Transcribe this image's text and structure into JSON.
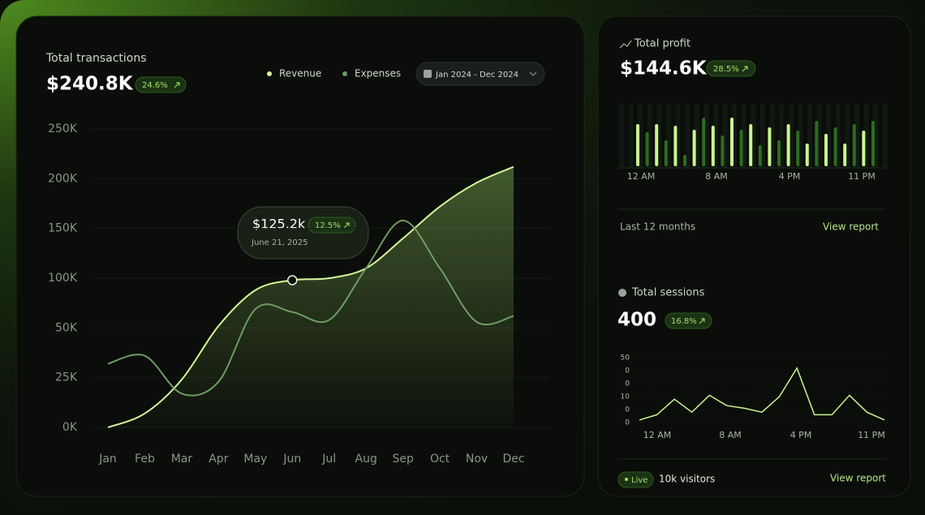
{
  "transactions": {
    "title": "Total transactions",
    "value": "$240.8K",
    "change": "24.6%",
    "date_range": "Jan 2024 - Dec 2024",
    "tooltip": {
      "value": "$125.2k",
      "change": "12.5%",
      "date": "June 21, 2025"
    },
    "chart_data": {
      "type": "line",
      "categories": [
        "Jan",
        "Feb",
        "Mar",
        "Apr",
        "May",
        "Jun",
        "Jul",
        "Aug",
        "Sep",
        "Oct",
        "Nov",
        "Dec"
      ],
      "series": [
        {
          "name": "Revenue",
          "color": "#d4f79a",
          "values": [
            0,
            7,
            24,
            52,
            88,
            98,
            100,
            110,
            140,
            172,
            196,
            212
          ]
        },
        {
          "name": "Expenses",
          "color": "#6e9c62",
          "values": [
            32,
            36,
            17,
            23,
            69,
            66,
            58,
            110,
            158,
            110,
            56,
            62
          ]
        }
      ],
      "ylim": [
        0,
        250
      ],
      "yticks": [
        {
          "value": 250,
          "label": "250K"
        },
        {
          "value": 200,
          "label": "200K"
        },
        {
          "value": 150,
          "label": "150K"
        },
        {
          "value": 100,
          "label": "100K"
        },
        {
          "value": 50,
          "label": "50K"
        },
        {
          "value": 25,
          "label": "25K"
        },
        {
          "value": 0,
          "label": "0K"
        }
      ],
      "grid": true
    }
  },
  "profit": {
    "title": "Total profit",
    "value": "$144.6K",
    "change": "28.5%",
    "footer": "Last 12 months",
    "link": "View report",
    "chart_data": {
      "type": "bar",
      "values": [
        52,
        42,
        52,
        32,
        50,
        14,
        45,
        60,
        50,
        38,
        60,
        45,
        52,
        26,
        48,
        32,
        52,
        44,
        28,
        56,
        40,
        48,
        28,
        52,
        44,
        56
      ],
      "colors": [
        "#c8f590",
        "#2f6a22"
      ],
      "ylim": [
        0,
        70
      ],
      "x_labels": [
        "12 AM",
        "8 AM",
        "4 PM",
        "11 PM"
      ]
    }
  },
  "sessions": {
    "title": "Total sessions",
    "value": "400",
    "change": "16.8%",
    "status": "Live",
    "visitors": "10k visitors",
    "link": "View report",
    "chart_data": {
      "type": "line",
      "values": [
        2,
        6,
        18,
        8,
        21,
        13,
        11,
        8,
        20,
        42,
        6,
        6,
        21,
        8,
        2
      ],
      "color": "#c8f590",
      "ylim": [
        0,
        50
      ],
      "y_labels": [
        "50",
        "0",
        "0",
        "10",
        "0",
        "0"
      ],
      "x_labels": [
        "12 AM",
        "8 AM",
        "4 PM",
        "11 PM"
      ]
    }
  }
}
